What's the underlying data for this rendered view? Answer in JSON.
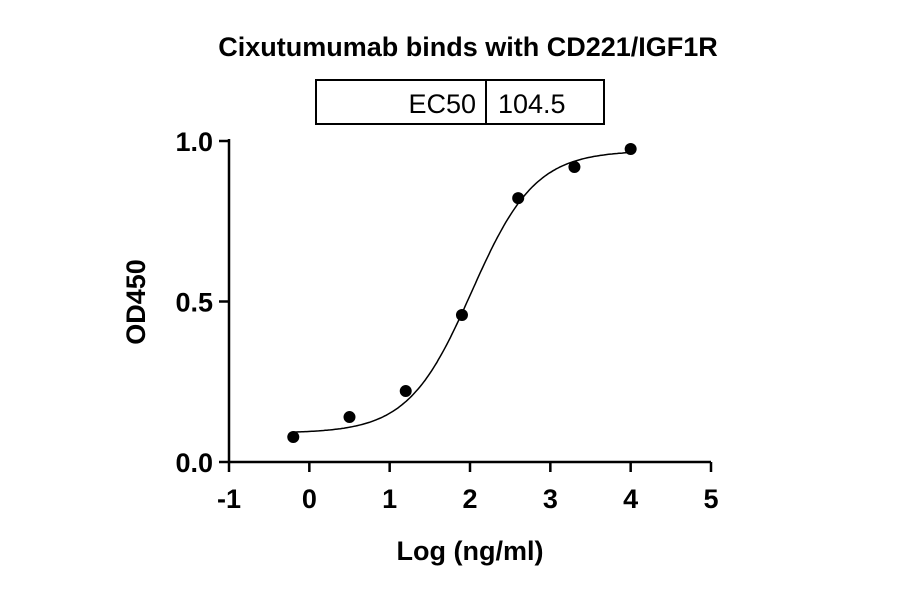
{
  "chart_data": {
    "type": "scatter",
    "title": "Cixutumumab binds with CD221/IGF1R",
    "xlabel": "Log (ng/ml)",
    "ylabel": "OD450",
    "xlim": [
      -1,
      5
    ],
    "ylim": [
      0,
      1
    ],
    "xticks": [
      "-1",
      "0",
      "1",
      "2",
      "3",
      "4",
      "5"
    ],
    "yticks": [
      "0.0",
      "0.5",
      "1.0"
    ],
    "grid": false,
    "points": [
      {
        "x": -0.2,
        "y": 0.078
      },
      {
        "x": 0.5,
        "y": 0.14
      },
      {
        "x": 1.2,
        "y": 0.221
      },
      {
        "x": 1.9,
        "y": 0.458
      },
      {
        "x": 2.6,
        "y": 0.822
      },
      {
        "x": 3.3,
        "y": 0.919
      },
      {
        "x": 4.0,
        "y": 0.975
      }
    ],
    "fit": {
      "model": "4PL",
      "bottom": 0.09,
      "top": 0.97,
      "logEC50": 2.02,
      "hill": 1.1,
      "xrange": [
        -0.2,
        4.0
      ]
    },
    "table": {
      "label": "EC50",
      "value": "104.5"
    },
    "colors": {
      "points": "#000000",
      "line": "#000000"
    }
  }
}
